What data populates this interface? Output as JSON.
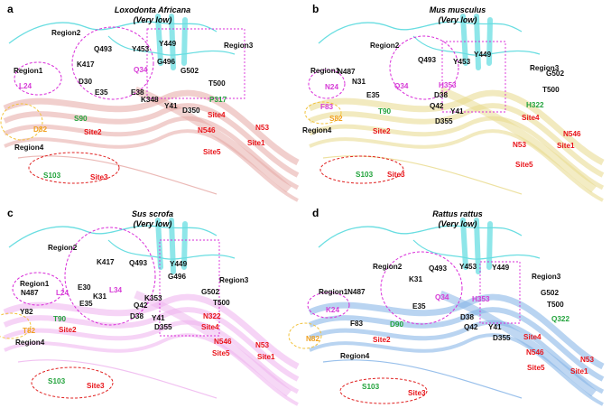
{
  "colors": {
    "region_pink": "#d63bd6",
    "site_red": "#e8141a",
    "green_res": "#22a33c",
    "orange_res": "#f0a01e",
    "black_res": "#111111",
    "helix_a": "#e6a8a4",
    "helix_b": "#e8d98a",
    "helix_c": "#eeb1ee",
    "helix_d": "#7fb0e6",
    "ace2_cyan": "#4fd8dc",
    "region_circle_magenta": "#d92bd9",
    "region_circle_orange": "#f2c23a",
    "site_circle_red": "#e02020"
  },
  "panels": [
    {
      "letter": "a",
      "title_line1": "Loxodonta Africana",
      "title_line2": "(Very low)",
      "helix_key": "helix_a",
      "labels": [
        {
          "t": "Region2",
          "c": "black_res"
        },
        {
          "t": "Region3",
          "c": "black_res"
        },
        {
          "t": "Region1",
          "c": "black_res"
        },
        {
          "t": "Region4",
          "c": "black_res"
        },
        {
          "t": "Q493",
          "c": "black_res"
        },
        {
          "t": "Y453",
          "c": "black_res"
        },
        {
          "t": "Y449",
          "c": "black_res"
        },
        {
          "t": "G496",
          "c": "black_res"
        },
        {
          "t": "K417",
          "c": "black_res"
        },
        {
          "t": "Q34",
          "c": "region_pink"
        },
        {
          "t": "G502",
          "c": "black_res"
        },
        {
          "t": "T500",
          "c": "black_res"
        },
        {
          "t": "D30",
          "c": "black_res"
        },
        {
          "t": "E35",
          "c": "black_res"
        },
        {
          "t": "E38",
          "c": "black_res"
        },
        {
          "t": "K348",
          "c": "black_res"
        },
        {
          "t": "P317",
          "c": "green_res"
        },
        {
          "t": "L24",
          "c": "region_pink"
        },
        {
          "t": "Y41",
          "c": "black_res"
        },
        {
          "t": "D350",
          "c": "black_res"
        },
        {
          "t": "Site4",
          "c": "site_red"
        },
        {
          "t": "S90",
          "c": "green_res"
        },
        {
          "t": "D82",
          "c": "orange_res"
        },
        {
          "t": "Site2",
          "c": "site_red"
        },
        {
          "t": "N53",
          "c": "site_red"
        },
        {
          "t": "N546",
          "c": "site_red"
        },
        {
          "t": "Site1",
          "c": "site_red"
        },
        {
          "t": "Site5",
          "c": "site_red"
        },
        {
          "t": "S103",
          "c": "green_res"
        },
        {
          "t": "Site3",
          "c": "site_red"
        }
      ]
    },
    {
      "letter": "b",
      "title_line1": "Mus musculus",
      "title_line2": "(Very low)",
      "helix_key": "helix_b",
      "labels": [
        {
          "t": "Region2",
          "c": "black_res"
        },
        {
          "t": "Y449",
          "c": "black_res"
        },
        {
          "t": "Region3",
          "c": "black_res"
        },
        {
          "t": "Q493",
          "c": "black_res"
        },
        {
          "t": "Y453",
          "c": "black_res"
        },
        {
          "t": "Region1",
          "c": "black_res"
        },
        {
          "t": "N487",
          "c": "black_res"
        },
        {
          "t": "N31",
          "c": "black_res"
        },
        {
          "t": "G502",
          "c": "black_res"
        },
        {
          "t": "N24",
          "c": "region_pink"
        },
        {
          "t": "E35",
          "c": "black_res"
        },
        {
          "t": "Q34",
          "c": "region_pink"
        },
        {
          "t": "D38",
          "c": "black_res"
        },
        {
          "t": "H353",
          "c": "region_pink"
        },
        {
          "t": "T500",
          "c": "black_res"
        },
        {
          "t": "F83",
          "c": "region_pink"
        },
        {
          "t": "Q42",
          "c": "black_res"
        },
        {
          "t": "H322",
          "c": "green_res"
        },
        {
          "t": "S82",
          "c": "orange_res"
        },
        {
          "t": "T90",
          "c": "green_res"
        },
        {
          "t": "Y41",
          "c": "black_res"
        },
        {
          "t": "Site4",
          "c": "site_red"
        },
        {
          "t": "Region4",
          "c": "black_res"
        },
        {
          "t": "Site2",
          "c": "site_red"
        },
        {
          "t": "D355",
          "c": "black_res"
        },
        {
          "t": "N53",
          "c": "site_red"
        },
        {
          "t": "N546",
          "c": "site_red"
        },
        {
          "t": "Site1",
          "c": "site_red"
        },
        {
          "t": "Site5",
          "c": "site_red"
        },
        {
          "t": "S103",
          "c": "green_res"
        },
        {
          "t": "Site3",
          "c": "site_red"
        }
      ]
    },
    {
      "letter": "c",
      "title_line1": "Sus scrofa",
      "title_line2": "(Very low)",
      "helix_key": "helix_c",
      "labels": [
        {
          "t": "Region2",
          "c": "black_res"
        },
        {
          "t": "Y449",
          "c": "black_res"
        },
        {
          "t": "K417",
          "c": "black_res"
        },
        {
          "t": "Q493",
          "c": "black_res"
        },
        {
          "t": "G496",
          "c": "black_res"
        },
        {
          "t": "Region3",
          "c": "black_res"
        },
        {
          "t": "Region1",
          "c": "black_res"
        },
        {
          "t": "E30",
          "c": "black_res"
        },
        {
          "t": "K31",
          "c": "black_res"
        },
        {
          "t": "N487",
          "c": "black_res"
        },
        {
          "t": "L24",
          "c": "region_pink"
        },
        {
          "t": "L34",
          "c": "region_pink"
        },
        {
          "t": "G502",
          "c": "black_res"
        },
        {
          "t": "E35",
          "c": "black_res"
        },
        {
          "t": "K353",
          "c": "black_res"
        },
        {
          "t": "Q42",
          "c": "black_res"
        },
        {
          "t": "T500",
          "c": "black_res"
        },
        {
          "t": "Y82",
          "c": "black_res"
        },
        {
          "t": "D38",
          "c": "black_res"
        },
        {
          "t": "T90",
          "c": "green_res"
        },
        {
          "t": "Y41",
          "c": "black_res"
        },
        {
          "t": "N322",
          "c": "site_red"
        },
        {
          "t": "T82",
          "c": "orange_res"
        },
        {
          "t": "Site2",
          "c": "site_red"
        },
        {
          "t": "D355",
          "c": "black_res"
        },
        {
          "t": "Site4",
          "c": "site_red"
        },
        {
          "t": "Region4",
          "c": "black_res"
        },
        {
          "t": "N546",
          "c": "site_red"
        },
        {
          "t": "N53",
          "c": "site_red"
        },
        {
          "t": "Site5",
          "c": "site_red"
        },
        {
          "t": "Site1",
          "c": "site_red"
        },
        {
          "t": "S103",
          "c": "green_res"
        },
        {
          "t": "Site3",
          "c": "site_red"
        }
      ]
    },
    {
      "letter": "d",
      "title_line1": "Rattus rattus",
      "title_line2": "(Very low)",
      "helix_key": "helix_d",
      "labels": [
        {
          "t": "Region2",
          "c": "black_res"
        },
        {
          "t": "Q493",
          "c": "black_res"
        },
        {
          "t": "Y453",
          "c": "black_res"
        },
        {
          "t": "Y449",
          "c": "black_res"
        },
        {
          "t": "Region3",
          "c": "black_res"
        },
        {
          "t": "Region1",
          "c": "black_res"
        },
        {
          "t": "N487",
          "c": "black_res"
        },
        {
          "t": "K31",
          "c": "black_res"
        },
        {
          "t": "G502",
          "c": "black_res"
        },
        {
          "t": "E35",
          "c": "black_res"
        },
        {
          "t": "Q34",
          "c": "region_pink"
        },
        {
          "t": "H353",
          "c": "region_pink"
        },
        {
          "t": "T500",
          "c": "black_res"
        },
        {
          "t": "K24",
          "c": "region_pink"
        },
        {
          "t": "D38",
          "c": "black_res"
        },
        {
          "t": "F83",
          "c": "black_res"
        },
        {
          "t": "D90",
          "c": "green_res"
        },
        {
          "t": "Q42",
          "c": "black_res"
        },
        {
          "t": "Y41",
          "c": "black_res"
        },
        {
          "t": "Q322",
          "c": "green_res"
        },
        {
          "t": "N82",
          "c": "orange_res"
        },
        {
          "t": "Site2",
          "c": "site_red"
        },
        {
          "t": "D355",
          "c": "black_res"
        },
        {
          "t": "Site4",
          "c": "site_red"
        },
        {
          "t": "Region4",
          "c": "black_res"
        },
        {
          "t": "N546",
          "c": "site_red"
        },
        {
          "t": "N53",
          "c": "site_red"
        },
        {
          "t": "Site5",
          "c": "site_red"
        },
        {
          "t": "Site1",
          "c": "site_red"
        },
        {
          "t": "S103",
          "c": "green_res"
        },
        {
          "t": "Site3",
          "c": "site_red"
        }
      ]
    }
  ]
}
